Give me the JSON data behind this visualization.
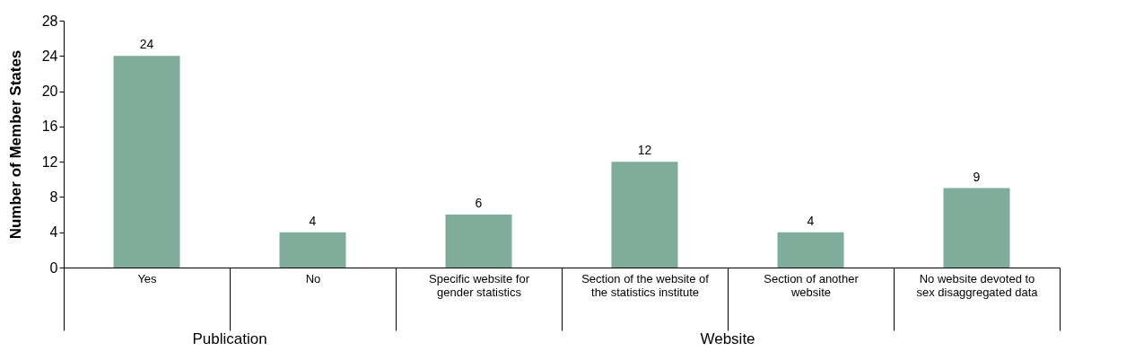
{
  "chart_data": {
    "type": "bar",
    "ylabel": "Number of Member States",
    "categories": [
      "Yes",
      "No",
      "Specific website for\ngender statistics",
      "Section of the website of\nthe statistics institute",
      "Section of another\nwebsite",
      "No website devoted to\nsex disaggregated data"
    ],
    "values": [
      24,
      4,
      6,
      12,
      4,
      9
    ],
    "color": "#7fac9b",
    "data_labels": true,
    "ylim": [
      0,
      28
    ],
    "yticks": [
      0,
      4,
      8,
      12,
      16,
      20,
      24,
      28
    ],
    "grid": false,
    "annotations": [
      "Publication",
      "Website"
    ]
  }
}
